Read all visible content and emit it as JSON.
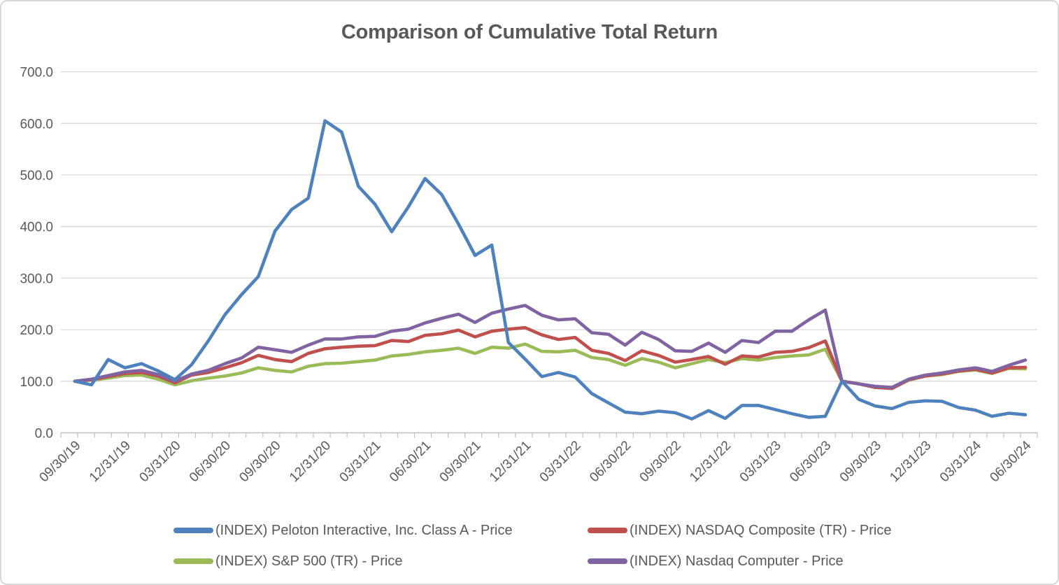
{
  "title": "Comparison of Cumulative Total Return",
  "colors": {
    "peloton_blue": "#4F81BD",
    "nasdaq_red": "#C0504D",
    "sp500_green": "#9BBB59",
    "nasdaq_computer_purple": "#8064A2",
    "text_gray": "#595959",
    "gridline_gray": "#D9D9D9",
    "axis_gray": "#BFBFBF"
  },
  "chart_data": {
    "type": "line",
    "title": "Comparison of Cumulative Total Return",
    "frequency": "monthly",
    "x_tick_labels": [
      "09/30/19",
      "12/31/19",
      "03/31/20",
      "06/30/20",
      "09/30/20",
      "12/31/20",
      "03/31/21",
      "06/30/21",
      "09/30/21",
      "12/31/21",
      "03/31/22",
      "06/30/22",
      "09/30/22",
      "12/31/22",
      "03/31/23",
      "06/30/23",
      "09/30/23",
      "12/31/23",
      "03/31/24",
      "06/30/24"
    ],
    "x_label_month_step": 3,
    "y_ticks": [
      0,
      100,
      200,
      300,
      400,
      500,
      600,
      700
    ],
    "y_tick_labels": [
      "0.0",
      "100.0",
      "200.0",
      "300.0",
      "400.0",
      "500.0",
      "600.0",
      "700.0"
    ],
    "ylim": [
      0,
      700
    ],
    "grid": "horizontal",
    "legend_position": "bottom",
    "series": [
      {
        "key": "peloton",
        "name": "(INDEX) Peloton Interactive, Inc. Class A - Price",
        "color": "#4F81BD",
        "values": [
          100,
          93,
          142,
          126,
          134,
          120,
          103,
          132,
          178,
          229,
          268,
          303,
          391,
          433,
          455,
          605,
          583,
          478,
          443,
          390,
          438,
          493,
          462,
          405,
          344,
          364,
          175,
          143,
          109,
          117,
          108,
          76,
          58,
          40,
          37,
          42,
          39,
          27,
          43,
          28,
          53,
          53,
          45,
          37,
          30,
          32,
          100,
          65,
          52,
          47,
          59,
          62,
          61,
          49,
          44,
          32,
          38,
          35
        ]
      },
      {
        "key": "nasdaq-composite",
        "name": "(INDEX) NASDAQ Composite (TR) - Price",
        "color": "#C0504D",
        "values": [
          100,
          103,
          109,
          115,
          117,
          110,
          97,
          112,
          117,
          126,
          136,
          150,
          142,
          138,
          154,
          163,
          166,
          168,
          169,
          179,
          177,
          189,
          192,
          199,
          186,
          197,
          201,
          204,
          190,
          181,
          185,
          160,
          154,
          140,
          159,
          150,
          137,
          142,
          148,
          133,
          149,
          147,
          156,
          158,
          165,
          178,
          100,
          95,
          88,
          86,
          103,
          110,
          114,
          120,
          123,
          116,
          126,
          127
        ]
      },
      {
        "key": "sp500",
        "name": "(INDEX) S&P 500 (TR) - Price",
        "color": "#9BBB59",
        "values": [
          100,
          102,
          106,
          111,
          112,
          104,
          93,
          101,
          106,
          110,
          116,
          126,
          121,
          118,
          129,
          134,
          135,
          138,
          141,
          149,
          152,
          157,
          160,
          164,
          154,
          166,
          164,
          172,
          158,
          157,
          160,
          146,
          142,
          131,
          144,
          137,
          126,
          134,
          142,
          136,
          144,
          141,
          146,
          149,
          151,
          162,
          100,
          95,
          88,
          86,
          102,
          110,
          113,
          119,
          122,
          115,
          125,
          124
        ]
      },
      {
        "key": "nasdaq-computer",
        "name": "(INDEX) Nasdaq Computer - Price",
        "color": "#8064A2",
        "values": [
          100,
          104,
          111,
          118,
          121,
          113,
          100,
          114,
          121,
          134,
          145,
          166,
          161,
          156,
          170,
          182,
          182,
          186,
          187,
          197,
          201,
          213,
          222,
          230,
          214,
          232,
          240,
          247,
          228,
          219,
          221,
          194,
          191,
          170,
          195,
          181,
          159,
          158,
          174,
          156,
          179,
          175,
          197,
          197,
          219,
          238,
          100,
          95,
          90,
          88,
          104,
          112,
          116,
          122,
          126,
          119,
          131,
          141
        ]
      }
    ]
  }
}
